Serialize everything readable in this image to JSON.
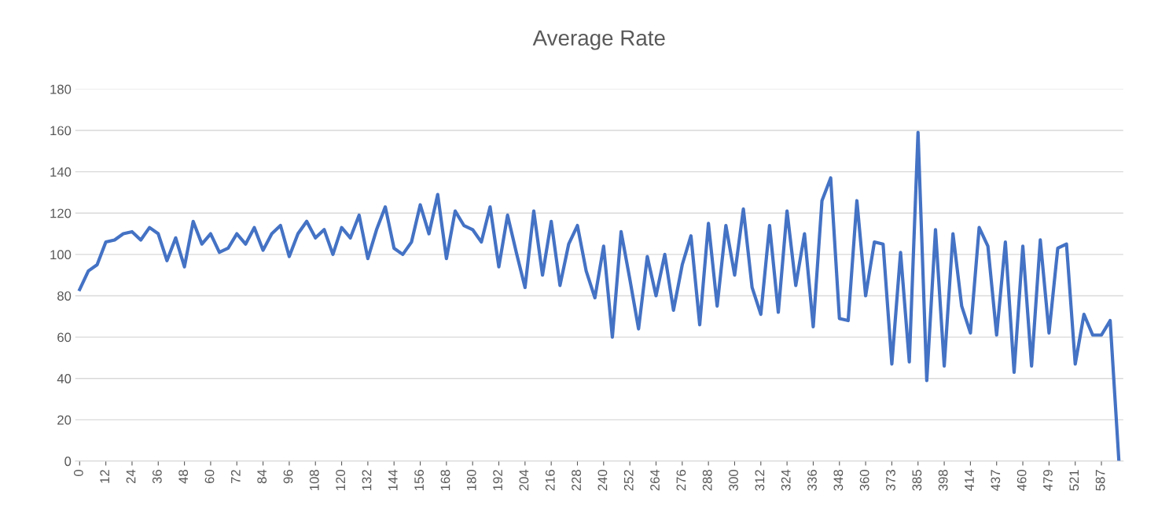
{
  "chart_data": {
    "type": "line",
    "title": "Average Rate",
    "categories": [
      "0",
      null,
      null,
      "12",
      null,
      null,
      "24",
      null,
      null,
      "36",
      null,
      null,
      "48",
      null,
      null,
      "60",
      null,
      null,
      "72",
      null,
      null,
      "84",
      null,
      null,
      "96",
      null,
      null,
      "108",
      null,
      null,
      "120",
      null,
      null,
      "132",
      null,
      null,
      "144",
      null,
      null,
      "156",
      null,
      null,
      "168",
      null,
      null,
      "180",
      null,
      null,
      "192",
      null,
      null,
      "204",
      null,
      null,
      "216",
      null,
      null,
      "228",
      null,
      null,
      "240",
      null,
      null,
      "252",
      null,
      null,
      "264",
      null,
      null,
      "276",
      null,
      null,
      "288",
      null,
      null,
      "300",
      null,
      null,
      "312",
      null,
      null,
      "324",
      null,
      null,
      "336",
      null,
      null,
      "348",
      null,
      null,
      "360",
      null,
      null,
      "373",
      null,
      null,
      "385",
      null,
      null,
      "398",
      null,
      null,
      "414",
      null,
      null,
      "437",
      null,
      null,
      "460",
      null,
      null,
      "479",
      null,
      null,
      "521",
      null,
      null,
      "587",
      null,
      null
    ],
    "series": [
      {
        "color": "#4472c4",
        "values": [
          83,
          92,
          95,
          106,
          107,
          110,
          111,
          107,
          113,
          110,
          97,
          108,
          94,
          116,
          105,
          110,
          101,
          103,
          110,
          105,
          113,
          102,
          110,
          114,
          99,
          110,
          116,
          108,
          112,
          100,
          113,
          108,
          119,
          98,
          112,
          123,
          103,
          100,
          106,
          124,
          110,
          129,
          98,
          121,
          114,
          112,
          106,
          123,
          94,
          119,
          101,
          84,
          121,
          90,
          116,
          85,
          105,
          114,
          92,
          79,
          104,
          60,
          111,
          88,
          64,
          99,
          80,
          100,
          73,
          95,
          109,
          66,
          115,
          75,
          114,
          90,
          122,
          84,
          71,
          114,
          72,
          121,
          85,
          110,
          65,
          126,
          137,
          69,
          68,
          126,
          80,
          106,
          105,
          47,
          101,
          48,
          159,
          39,
          112,
          46,
          110,
          75,
          62,
          113,
          104,
          61,
          106,
          43,
          104,
          46,
          107,
          62,
          103,
          105,
          47,
          71,
          61,
          61,
          68,
          0
        ]
      }
    ],
    "ylim": [
      0,
      180
    ],
    "yticks": [
      0,
      20,
      40,
      60,
      80,
      100,
      120,
      140,
      160,
      180
    ],
    "grid": "y",
    "legend": false,
    "marker": "none",
    "line_style": "solid"
  }
}
